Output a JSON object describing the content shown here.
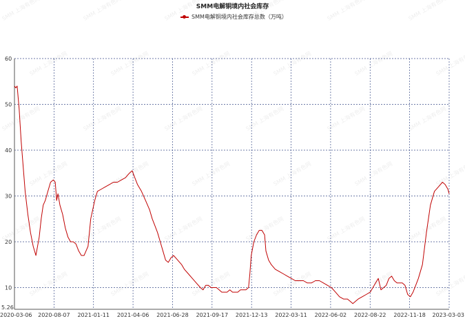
{
  "chart_data": {
    "type": "line",
    "title": "SMM电解铜境内社会库存",
    "series": [
      {
        "name": "SMM电解铜境内社会库存总数（万吨）",
        "color": "#c00000",
        "values": [
          [
            0,
            54
          ],
          [
            0.01,
            53.6
          ],
          [
            0.02,
            54
          ],
          [
            0.035,
            49
          ],
          [
            0.05,
            42
          ],
          [
            0.08,
            31
          ],
          [
            0.1,
            26
          ],
          [
            0.12,
            22
          ],
          [
            0.14,
            19
          ],
          [
            0.16,
            17
          ],
          [
            0.185,
            21
          ],
          [
            0.2,
            25
          ],
          [
            0.215,
            28
          ],
          [
            0.23,
            29
          ],
          [
            0.25,
            31
          ],
          [
            0.27,
            33
          ],
          [
            0.29,
            33.5
          ],
          [
            0.305,
            33
          ],
          [
            0.315,
            29
          ],
          [
            0.325,
            30.5
          ],
          [
            0.34,
            28
          ],
          [
            0.36,
            26
          ],
          [
            0.38,
            23
          ],
          [
            0.4,
            21
          ],
          [
            0.42,
            20
          ],
          [
            0.44,
            20
          ],
          [
            0.46,
            19.5
          ],
          [
            0.48,
            18
          ],
          [
            0.5,
            17
          ],
          [
            0.52,
            17
          ],
          [
            0.55,
            19
          ],
          [
            0.57,
            25
          ],
          [
            0.6,
            29
          ],
          [
            0.62,
            31
          ],
          [
            0.65,
            31.5
          ],
          [
            0.68,
            32
          ],
          [
            0.71,
            32.5
          ],
          [
            0.74,
            33
          ],
          [
            0.77,
            33
          ],
          [
            0.8,
            33.5
          ],
          [
            0.83,
            34
          ],
          [
            0.86,
            35
          ],
          [
            0.88,
            35.5
          ],
          [
            0.9,
            34
          ],
          [
            0.92,
            32.5
          ],
          [
            0.95,
            31
          ],
          [
            0.98,
            29
          ],
          [
            1.01,
            27
          ],
          [
            1.03,
            25
          ],
          [
            1.05,
            23.5
          ],
          [
            1.07,
            22
          ],
          [
            1.09,
            20
          ],
          [
            1.11,
            18
          ],
          [
            1.13,
            16
          ],
          [
            1.15,
            15.5
          ],
          [
            1.17,
            16.5
          ],
          [
            1.19,
            17
          ],
          [
            1.22,
            16
          ],
          [
            1.25,
            15
          ],
          [
            1.27,
            14
          ],
          [
            1.3,
            13
          ],
          [
            1.33,
            12
          ],
          [
            1.36,
            11
          ],
          [
            1.39,
            10
          ],
          [
            1.41,
            9.5
          ],
          [
            1.43,
            10.5
          ],
          [
            1.45,
            10.5
          ],
          [
            1.47,
            10
          ],
          [
            1.49,
            10
          ],
          [
            1.51,
            10
          ],
          [
            1.53,
            9.5
          ],
          [
            1.55,
            9
          ],
          [
            1.57,
            9
          ],
          [
            1.59,
            9
          ],
          [
            1.61,
            9.5
          ],
          [
            1.63,
            9
          ],
          [
            1.65,
            9
          ],
          [
            1.67,
            9
          ],
          [
            1.69,
            9.5
          ],
          [
            1.71,
            9.5
          ],
          [
            1.73,
            9.5
          ],
          [
            1.75,
            10
          ],
          [
            1.76,
            13
          ],
          [
            1.77,
            17
          ],
          [
            1.79,
            20
          ],
          [
            1.81,
            21.5
          ],
          [
            1.83,
            22.5
          ],
          [
            1.85,
            22.5
          ],
          [
            1.87,
            21.5
          ],
          [
            1.88,
            18
          ],
          [
            1.9,
            16
          ],
          [
            1.92,
            15
          ],
          [
            1.95,
            14
          ],
          [
            1.98,
            13.5
          ],
          [
            2.01,
            13
          ],
          [
            2.04,
            12.5
          ],
          [
            2.07,
            12
          ],
          [
            2.1,
            11.5
          ],
          [
            2.13,
            11.5
          ],
          [
            2.16,
            11.5
          ],
          [
            2.19,
            11
          ],
          [
            2.22,
            11
          ],
          [
            2.25,
            11.5
          ],
          [
            2.28,
            11.5
          ],
          [
            2.31,
            11
          ],
          [
            2.34,
            10.5
          ],
          [
            2.37,
            10
          ],
          [
            2.4,
            9
          ],
          [
            2.43,
            8
          ],
          [
            2.46,
            7.5
          ],
          [
            2.49,
            7.5
          ],
          [
            2.51,
            7
          ],
          [
            2.53,
            6.5
          ],
          [
            2.55,
            7
          ],
          [
            2.57,
            7.5
          ],
          [
            2.6,
            8
          ],
          [
            2.63,
            8.5
          ],
          [
            2.66,
            9
          ],
          [
            2.68,
            10
          ],
          [
            2.7,
            11
          ],
          [
            2.72,
            12
          ],
          [
            2.74,
            9.5
          ],
          [
            2.76,
            10
          ],
          [
            2.78,
            10.5
          ],
          [
            2.8,
            12
          ],
          [
            2.82,
            12.5
          ],
          [
            2.84,
            11.5
          ],
          [
            2.86,
            11
          ],
          [
            2.88,
            11
          ],
          [
            2.9,
            11
          ],
          [
            2.92,
            10.5
          ],
          [
            2.94,
            8.5
          ],
          [
            2.96,
            8
          ],
          [
            2.98,
            9
          ],
          [
            3.0,
            10.5
          ],
          [
            3.02,
            12
          ],
          [
            3.05,
            15
          ],
          [
            3.08,
            22
          ],
          [
            3.11,
            28
          ],
          [
            3.14,
            31
          ],
          [
            3.17,
            32
          ],
          [
            3.2,
            33
          ],
          [
            3.22,
            32.5
          ],
          [
            3.24,
            31.5
          ],
          [
            3.25,
            30.5
          ]
        ]
      }
    ],
    "x_tick_labels": [
      "2020-03-06",
      "2020-08-07",
      "2021-01-11",
      "2021-04-06",
      "2021-06-28",
      "2021-09-17",
      "2021-12-13",
      "2022-03-11",
      "2022-06-02",
      "2022-08-22",
      "2022-11-18",
      "2023-03-03"
    ],
    "y_ticks": [
      10,
      20,
      30,
      40,
      50,
      60
    ],
    "y_min_label": "5.26",
    "ylim": [
      5.26,
      60
    ],
    "grid": true,
    "legend_position": "top-center",
    "watermark": "SMM 上海有色网"
  }
}
